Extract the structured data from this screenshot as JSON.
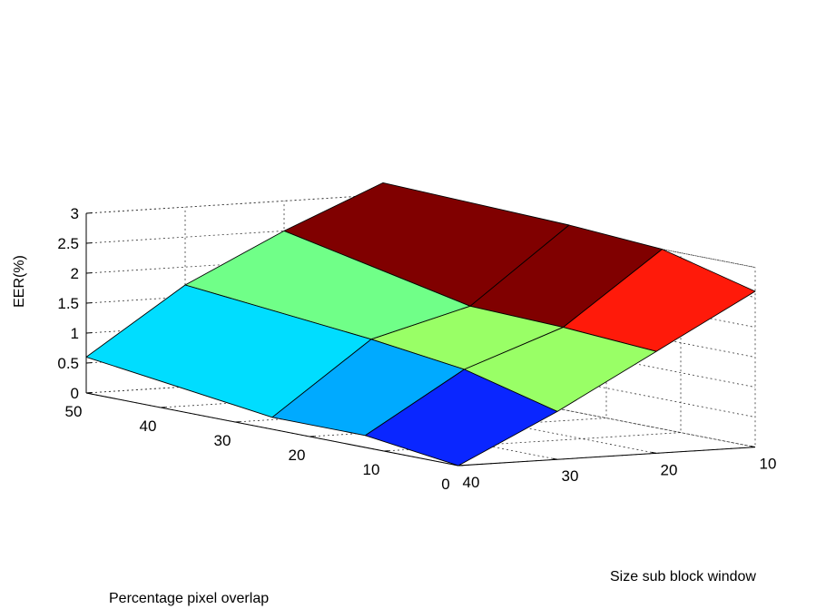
{
  "chart_data": {
    "type": "surface",
    "zlabel": "EER(%)",
    "xlabel": "Percentage pixel overlap",
    "ylabel": "Size sub block window",
    "grid": true,
    "x_ticks": [
      0,
      10,
      20,
      30,
      40,
      50
    ],
    "y_ticks": [
      10,
      20,
      30,
      40
    ],
    "z_ticks": [
      0,
      0.5,
      1,
      1.5,
      2,
      2.5,
      3
    ],
    "xlim": [
      0,
      50
    ],
    "ylim": [
      10,
      40
    ],
    "zlim": [
      0,
      3
    ],
    "x_values": [
      0,
      12.5,
      25,
      50
    ],
    "y_values": [
      10,
      20,
      30,
      40
    ],
    "z": [
      [
        2.6,
        3.0,
        3.1,
        3.2
      ],
      [
        1.7,
        1.8,
        1.85,
        2.5
      ],
      [
        0.8,
        1.2,
        1.4,
        1.7
      ],
      [
        0,
        0.2,
        0.2,
        0.6
      ]
    ],
    "colors": [
      [
        "#ff1a0a",
        "#800000",
        "#800000"
      ],
      [
        "#99ff66",
        "#99ff66",
        "#70ff88"
      ],
      [
        "#0a26ff",
        "#00aaff",
        "#00ddff"
      ]
    ],
    "x_tick_labels": [
      "0",
      "10",
      "20",
      "30",
      "40",
      "50"
    ],
    "y_tick_labels": [
      "10",
      "20",
      "30",
      "40"
    ],
    "z_tick_labels": [
      "0",
      "0.5",
      "1",
      "1.5",
      "2",
      "2.5",
      "3"
    ]
  }
}
